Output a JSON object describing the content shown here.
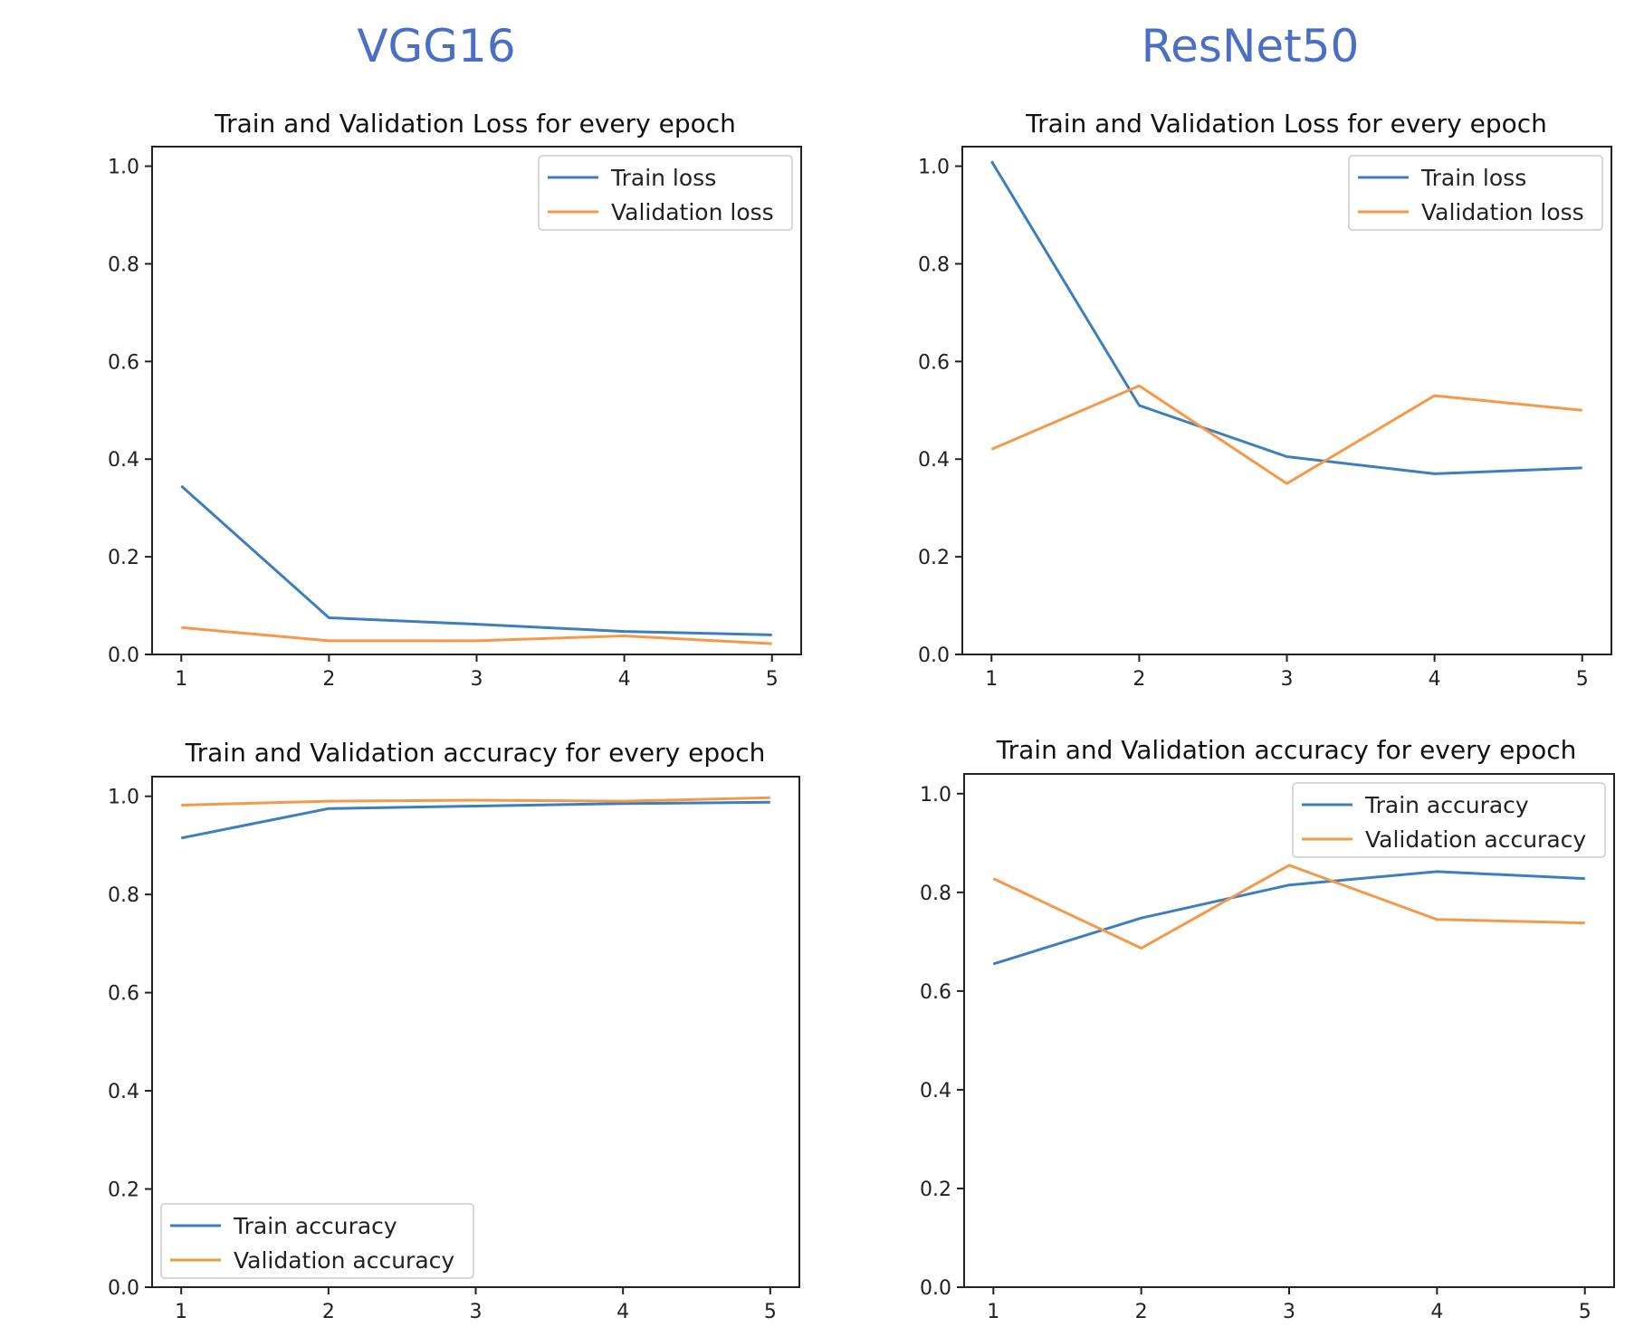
{
  "columns": {
    "left": "VGG16",
    "right": "ResNet50"
  },
  "colors": {
    "train": "#3d7ebf",
    "validation": "#f39a4a",
    "axis": "#222222"
  },
  "chart_data": [
    {
      "id": "vgg16-loss",
      "type": "line",
      "title": "Train and Validation Loss for every epoch",
      "xlabel": "",
      "ylabel": "",
      "x": [
        1,
        2,
        3,
        4,
        5
      ],
      "xticks": [
        "1",
        "2",
        "3",
        "4",
        "5"
      ],
      "yticks": [
        "0.0",
        "0.2",
        "0.4",
        "0.6",
        "0.8",
        "1.0"
      ],
      "ylim": [
        0,
        1.04
      ],
      "legend": "top-right",
      "series": [
        {
          "name": "Train loss",
          "values": [
            0.345,
            0.075,
            0.062,
            0.047,
            0.04
          ]
        },
        {
          "name": "Validation loss",
          "values": [
            0.055,
            0.028,
            0.028,
            0.038,
            0.022
          ]
        }
      ]
    },
    {
      "id": "resnet50-loss",
      "type": "line",
      "title": "Train and Validation Loss for every epoch",
      "xlabel": "",
      "ylabel": "",
      "x": [
        1,
        2,
        3,
        4,
        5
      ],
      "xticks": [
        "1",
        "2",
        "3",
        "4",
        "5"
      ],
      "yticks": [
        "0.0",
        "0.2",
        "0.4",
        "0.6",
        "0.8",
        "1.0"
      ],
      "ylim": [
        0,
        1.04
      ],
      "legend": "top-right",
      "series": [
        {
          "name": "Train loss",
          "values": [
            1.01,
            0.51,
            0.405,
            0.37,
            0.382
          ]
        },
        {
          "name": "Validation loss",
          "values": [
            0.42,
            0.55,
            0.35,
            0.53,
            0.5
          ]
        }
      ]
    },
    {
      "id": "vgg16-accuracy",
      "type": "line",
      "title": "Train and Validation accuracy for every epoch",
      "xlabel": "",
      "ylabel": "",
      "x": [
        1,
        2,
        3,
        4,
        5
      ],
      "xticks": [
        "1",
        "2",
        "3",
        "4",
        "5"
      ],
      "yticks": [
        "0.0",
        "0.2",
        "0.4",
        "0.6",
        "0.8",
        "1.0"
      ],
      "ylim": [
        0,
        1.04
      ],
      "legend": "bottom-left",
      "series": [
        {
          "name": "Train accuracy",
          "values": [
            0.915,
            0.975,
            0.98,
            0.985,
            0.988
          ]
        },
        {
          "name": "Validation accuracy",
          "values": [
            0.982,
            0.99,
            0.992,
            0.99,
            0.997
          ]
        }
      ]
    },
    {
      "id": "resnet50-accuracy",
      "type": "line",
      "title": "Train and Validation accuracy for every epoch",
      "xlabel": "",
      "ylabel": "",
      "x": [
        1,
        2,
        3,
        4,
        5
      ],
      "xticks": [
        "1",
        "2",
        "3",
        "4",
        "5"
      ],
      "yticks": [
        "0.0",
        "0.2",
        "0.4",
        "0.6",
        "0.8",
        "1.0"
      ],
      "ylim": [
        0,
        1.04
      ],
      "legend": "top-right",
      "series": [
        {
          "name": "Train accuracy",
          "values": [
            0.655,
            0.748,
            0.815,
            0.842,
            0.828
          ]
        },
        {
          "name": "Validation accuracy",
          "values": [
            0.828,
            0.687,
            0.855,
            0.745,
            0.738
          ]
        }
      ]
    }
  ]
}
